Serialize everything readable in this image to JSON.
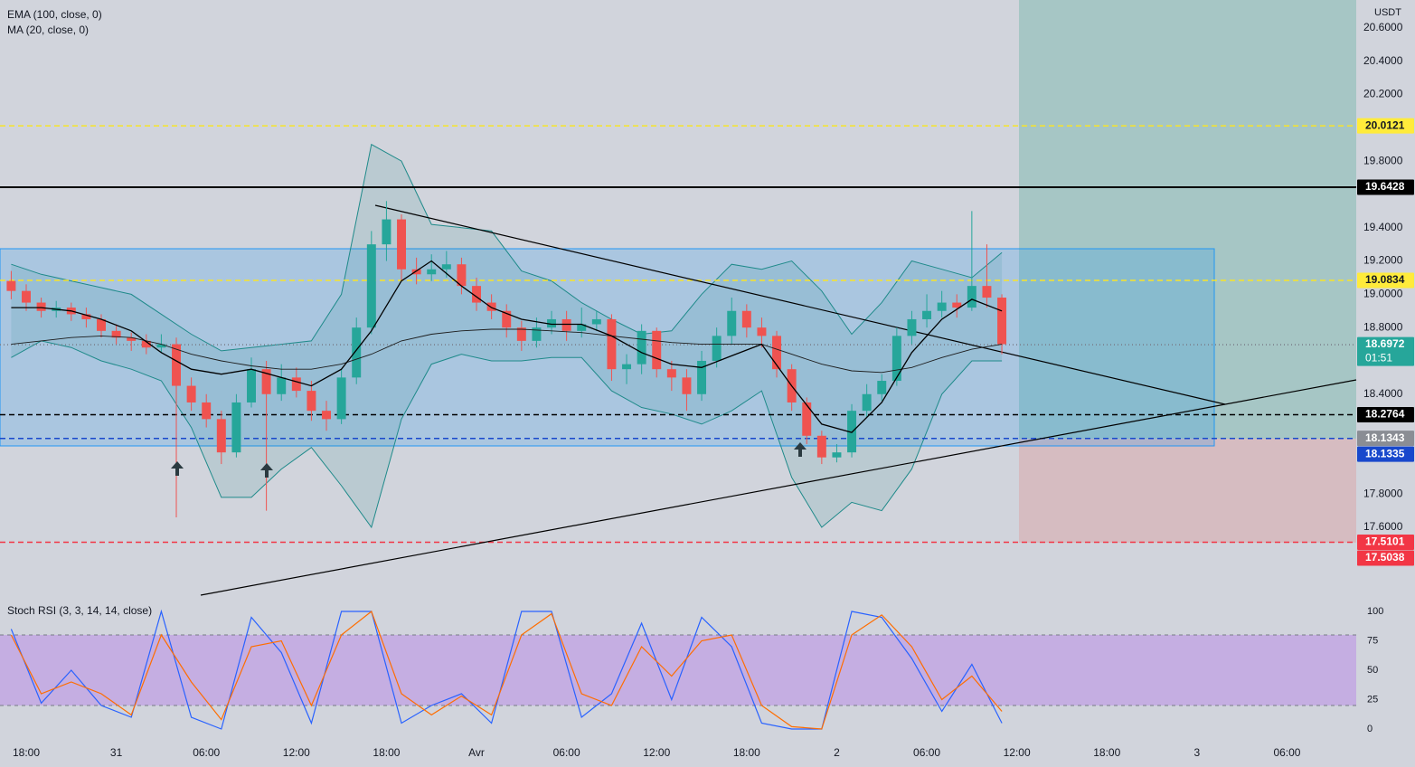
{
  "chart_data": [
    {
      "type": "candlestick",
      "xlim": [
        -1.747,
        88.61
      ],
      "ylim": [
        17.263,
        20.768
      ],
      "unit": "USDT",
      "yticks": [
        {
          "value": 20.6,
          "label": "20.6000"
        },
        {
          "value": 20.4,
          "label": "20.4000"
        },
        {
          "value": 20.2,
          "label": "20.2000"
        },
        {
          "value": 19.8,
          "label": "19.8000"
        },
        {
          "value": 19.4,
          "label": "19.4000"
        },
        {
          "value": 19.2,
          "label": "19.2000"
        },
        {
          "value": 19.0,
          "label": "19.0000"
        },
        {
          "value": 18.8,
          "label": "18.8000"
        },
        {
          "value": 18.4,
          "label": "18.4000"
        },
        {
          "value": 17.8,
          "label": "17.8000"
        },
        {
          "value": 17.6,
          "label": "17.6000"
        }
      ],
      "up_color": "#26a69a",
      "down_color": "#ef5350",
      "x": [
        -1,
        0,
        1,
        2,
        3,
        4,
        5,
        6,
        7,
        8,
        9,
        10,
        11,
        12,
        13,
        14,
        15,
        16,
        17,
        18,
        19,
        20,
        21,
        22,
        23,
        24,
        25,
        26,
        27,
        28,
        29,
        30,
        31,
        32,
        33,
        34,
        35,
        36,
        37,
        38,
        39,
        40,
        41,
        42,
        43,
        44,
        45,
        46,
        47,
        48,
        49,
        50,
        51,
        52,
        53,
        54,
        55,
        56,
        57,
        58,
        59,
        60,
        61,
        62,
        63,
        64,
        65
      ],
      "open": [
        19.08,
        19.02,
        18.95,
        18.9,
        18.92,
        18.88,
        18.85,
        18.78,
        18.74,
        18.72,
        18.68,
        18.7,
        18.45,
        18.35,
        18.25,
        18.05,
        18.35,
        18.55,
        18.4,
        18.5,
        18.42,
        18.3,
        18.25,
        18.5,
        18.8,
        19.3,
        19.45,
        19.15,
        19.12,
        19.15,
        19.18,
        19.05,
        18.95,
        18.9,
        18.8,
        18.72,
        18.8,
        18.85,
        18.78,
        18.82,
        18.85,
        18.55,
        18.58,
        18.78,
        18.55,
        18.5,
        18.4,
        18.6,
        18.75,
        18.9,
        18.8,
        18.75,
        18.55,
        18.35,
        18.15,
        18.02,
        18.05,
        18.3,
        18.4,
        18.48,
        18.75,
        18.85,
        18.9,
        18.95,
        18.92,
        19.05,
        18.98
      ],
      "high": [
        19.14,
        19.06,
        18.98,
        18.96,
        18.95,
        18.92,
        18.88,
        18.82,
        18.77,
        18.76,
        18.76,
        18.74,
        18.5,
        18.4,
        18.3,
        18.4,
        18.62,
        18.6,
        18.58,
        18.56,
        18.48,
        18.36,
        18.55,
        18.86,
        19.38,
        19.56,
        19.48,
        19.22,
        19.24,
        19.26,
        19.22,
        19.1,
        19.0,
        18.94,
        18.84,
        18.86,
        18.9,
        18.9,
        18.92,
        18.9,
        18.88,
        18.64,
        18.82,
        18.8,
        18.6,
        18.55,
        18.66,
        18.8,
        18.98,
        18.94,
        18.86,
        18.78,
        18.58,
        18.38,
        18.18,
        18.1,
        18.34,
        18.46,
        18.52,
        18.8,
        18.9,
        19.0,
        19.02,
        19.0,
        19.5,
        19.3,
        19.0
      ],
      "low": [
        18.97,
        18.9,
        18.86,
        18.86,
        18.84,
        18.8,
        18.74,
        18.7,
        18.66,
        18.64,
        18.65,
        17.66,
        18.3,
        18.2,
        17.98,
        18.02,
        18.32,
        17.7,
        18.36,
        18.38,
        18.24,
        18.18,
        18.22,
        18.46,
        18.76,
        19.2,
        19.08,
        19.06,
        19.08,
        19.1,
        19.0,
        18.9,
        18.85,
        18.74,
        18.66,
        18.68,
        18.76,
        18.72,
        18.74,
        18.78,
        18.48,
        18.46,
        18.52,
        18.5,
        18.42,
        18.3,
        18.36,
        18.56,
        18.7,
        18.74,
        18.68,
        18.5,
        18.3,
        18.1,
        17.98,
        17.99,
        18.02,
        18.26,
        18.36,
        18.45,
        18.7,
        18.8,
        18.86,
        18.86,
        18.9,
        18.92,
        18.64
      ],
      "close": [
        19.02,
        18.95,
        18.9,
        18.92,
        18.88,
        18.85,
        18.78,
        18.74,
        18.72,
        18.68,
        18.7,
        18.45,
        18.35,
        18.25,
        18.05,
        18.35,
        18.55,
        18.4,
        18.5,
        18.42,
        18.3,
        18.25,
        18.5,
        18.8,
        19.3,
        19.45,
        19.15,
        19.12,
        19.15,
        19.18,
        19.05,
        18.95,
        18.9,
        18.8,
        18.72,
        18.8,
        18.85,
        18.78,
        18.82,
        18.85,
        18.55,
        18.58,
        18.78,
        18.55,
        18.5,
        18.4,
        18.6,
        18.75,
        18.9,
        18.8,
        18.75,
        18.55,
        18.35,
        18.15,
        18.02,
        18.05,
        18.3,
        18.4,
        18.48,
        18.75,
        18.85,
        18.9,
        18.95,
        18.92,
        19.05,
        18.98,
        18.7
      ],
      "series": [
        {
          "name": "EMA (100, close, 0)",
          "color": "#1c1c1c",
          "x": [
            -1,
            1,
            3,
            5,
            7,
            9,
            11,
            13,
            15,
            17,
            19,
            21,
            23,
            25,
            27,
            29,
            31,
            33,
            35,
            37,
            39,
            41,
            43,
            45,
            47,
            49,
            51,
            53,
            55,
            57,
            59,
            61,
            63,
            65
          ],
          "values": [
            18.7,
            18.72,
            18.74,
            18.75,
            18.74,
            18.7,
            18.64,
            18.6,
            18.57,
            18.55,
            18.55,
            18.58,
            18.64,
            18.72,
            18.76,
            18.78,
            18.79,
            18.79,
            18.78,
            18.77,
            18.75,
            18.73,
            18.71,
            18.7,
            18.7,
            18.7,
            18.64,
            18.58,
            18.54,
            18.53,
            18.56,
            18.62,
            18.67,
            18.7
          ]
        },
        {
          "name": "MA (20, close, 0)",
          "color": "#000000",
          "x": [
            -1,
            1,
            3,
            5,
            7,
            9,
            11,
            13,
            15,
            17,
            19,
            21,
            23,
            25,
            27,
            29,
            31,
            33,
            35,
            37,
            39,
            41,
            43,
            45,
            47,
            49,
            51,
            53,
            55,
            57,
            59,
            61,
            63,
            65
          ],
          "values": [
            18.92,
            18.92,
            18.9,
            18.85,
            18.78,
            18.65,
            18.55,
            18.52,
            18.55,
            18.5,
            18.45,
            18.55,
            18.78,
            19.08,
            19.2,
            19.05,
            18.92,
            18.85,
            18.82,
            18.82,
            18.75,
            18.65,
            18.58,
            18.56,
            18.63,
            18.7,
            18.45,
            18.22,
            18.17,
            18.35,
            18.65,
            18.85,
            18.97,
            18.9
          ]
        }
      ],
      "bands": {
        "color": "#1f8a8a",
        "x": [
          -1,
          1,
          3,
          5,
          7,
          9,
          11,
          13,
          15,
          17,
          19,
          21,
          23,
          25,
          27,
          29,
          31,
          33,
          35,
          37,
          39,
          41,
          43,
          45,
          47,
          49,
          51,
          53,
          55,
          57,
          59,
          61,
          63,
          65
        ],
        "upper": [
          19.18,
          19.12,
          19.08,
          19.04,
          19.0,
          18.88,
          18.76,
          18.66,
          18.68,
          18.7,
          18.72,
          19.0,
          19.9,
          19.8,
          19.42,
          19.4,
          19.38,
          19.14,
          19.08,
          18.95,
          18.85,
          18.76,
          18.78,
          19.0,
          19.18,
          19.15,
          19.2,
          19.02,
          18.76,
          18.95,
          19.2,
          19.15,
          19.1,
          19.25
        ],
        "lower": [
          18.62,
          18.72,
          18.68,
          18.6,
          18.55,
          18.48,
          18.2,
          17.78,
          17.78,
          17.95,
          18.08,
          17.85,
          17.6,
          18.25,
          18.58,
          18.64,
          18.6,
          18.6,
          18.62,
          18.62,
          18.42,
          18.32,
          18.28,
          18.22,
          18.3,
          18.42,
          17.9,
          17.6,
          17.75,
          17.7,
          17.95,
          18.4,
          18.6,
          18.6
        ]
      },
      "price_labels": [
        {
          "value": 20.0121,
          "color": "#ffeb3b",
          "text_color": "#131722",
          "line": "dashed",
          "line_color": "#f7e32a"
        },
        {
          "value": 19.6428,
          "color": "#000000",
          "text_color": "#ffffff",
          "line": "solid",
          "line_color": "#000000"
        },
        {
          "value": 19.0834,
          "color": "#ffeb3b",
          "text_color": "#131722",
          "line": "dashed",
          "line_color": "#f7e32a"
        },
        {
          "value": 18.6972,
          "color": "#26a69a",
          "text_color": "#ffffff",
          "line": "dotted",
          "line_color": "#787b86",
          "countdown": "01:51"
        },
        {
          "value": 18.2764,
          "color": "#000000",
          "text_color": "#ffffff",
          "line": "dashed",
          "line_color": "#000000"
        },
        {
          "value": 18.1343,
          "color": "#8a8d94",
          "text_color": "#ffffff"
        },
        {
          "value": 18.1335,
          "color": "#1848cc",
          "text_color": "#ffffff",
          "line": "dashed",
          "line_color": "#1848cc"
        },
        {
          "value": 17.5101,
          "color": "#f23645",
          "text_color": "#ffffff",
          "line": "dashed",
          "line_color": "#f23645"
        },
        {
          "value": 17.5038,
          "color": "#f23645",
          "text_color": "#ffffff"
        }
      ]
    },
    {
      "type": "line",
      "title": "Stoch RSI (3, 3, 14, 14, close)",
      "xlim": [
        -1.747,
        88.61
      ],
      "ylim": [
        -10.8,
        112.3
      ],
      "yticks": [
        100,
        75,
        50,
        25,
        0
      ],
      "band": [
        20,
        80
      ],
      "band_color": "#c5aee2",
      "xticks": [
        {
          "value": 0,
          "label": "18:00"
        },
        {
          "value": 6,
          "label": "31"
        },
        {
          "value": 12,
          "label": "06:00"
        },
        {
          "value": 18,
          "label": "12:00"
        },
        {
          "value": 24,
          "label": "18:00"
        },
        {
          "value": 30,
          "label": "Avr"
        },
        {
          "value": 36,
          "label": "06:00"
        },
        {
          "value": 42,
          "label": "12:00"
        },
        {
          "value": 48,
          "label": "18:00"
        },
        {
          "value": 54,
          "label": "2"
        },
        {
          "value": 60,
          "label": "06:00"
        },
        {
          "value": 66,
          "label": "12:00"
        },
        {
          "value": 72,
          "label": "18:00"
        },
        {
          "value": 78,
          "label": "3"
        },
        {
          "value": 84,
          "label": "06:00"
        }
      ],
      "x": [
        -1,
        1,
        3,
        5,
        7,
        9,
        11,
        13,
        15,
        17,
        19,
        21,
        23,
        25,
        27,
        29,
        31,
        33,
        35,
        37,
        39,
        41,
        43,
        45,
        47,
        49,
        51,
        53,
        55,
        57,
        59,
        61,
        63,
        65
      ],
      "series": [
        {
          "color": "#2962ff",
          "values": [
            85,
            22,
            50,
            20,
            10,
            100,
            10,
            0,
            95,
            65,
            5,
            100,
            100,
            5,
            20,
            30,
            5,
            100,
            100,
            10,
            30,
            90,
            25,
            95,
            70,
            5,
            0,
            0,
            100,
            95,
            60,
            15,
            55,
            5
          ]
        },
        {
          "color": "#ff6d00",
          "values": [
            80,
            30,
            40,
            30,
            12,
            80,
            40,
            8,
            70,
            75,
            20,
            80,
            100,
            30,
            12,
            28,
            12,
            80,
            98,
            30,
            20,
            70,
            45,
            75,
            80,
            20,
            2,
            0,
            80,
            97,
            70,
            25,
            45,
            15
          ]
        }
      ]
    }
  ]
}
